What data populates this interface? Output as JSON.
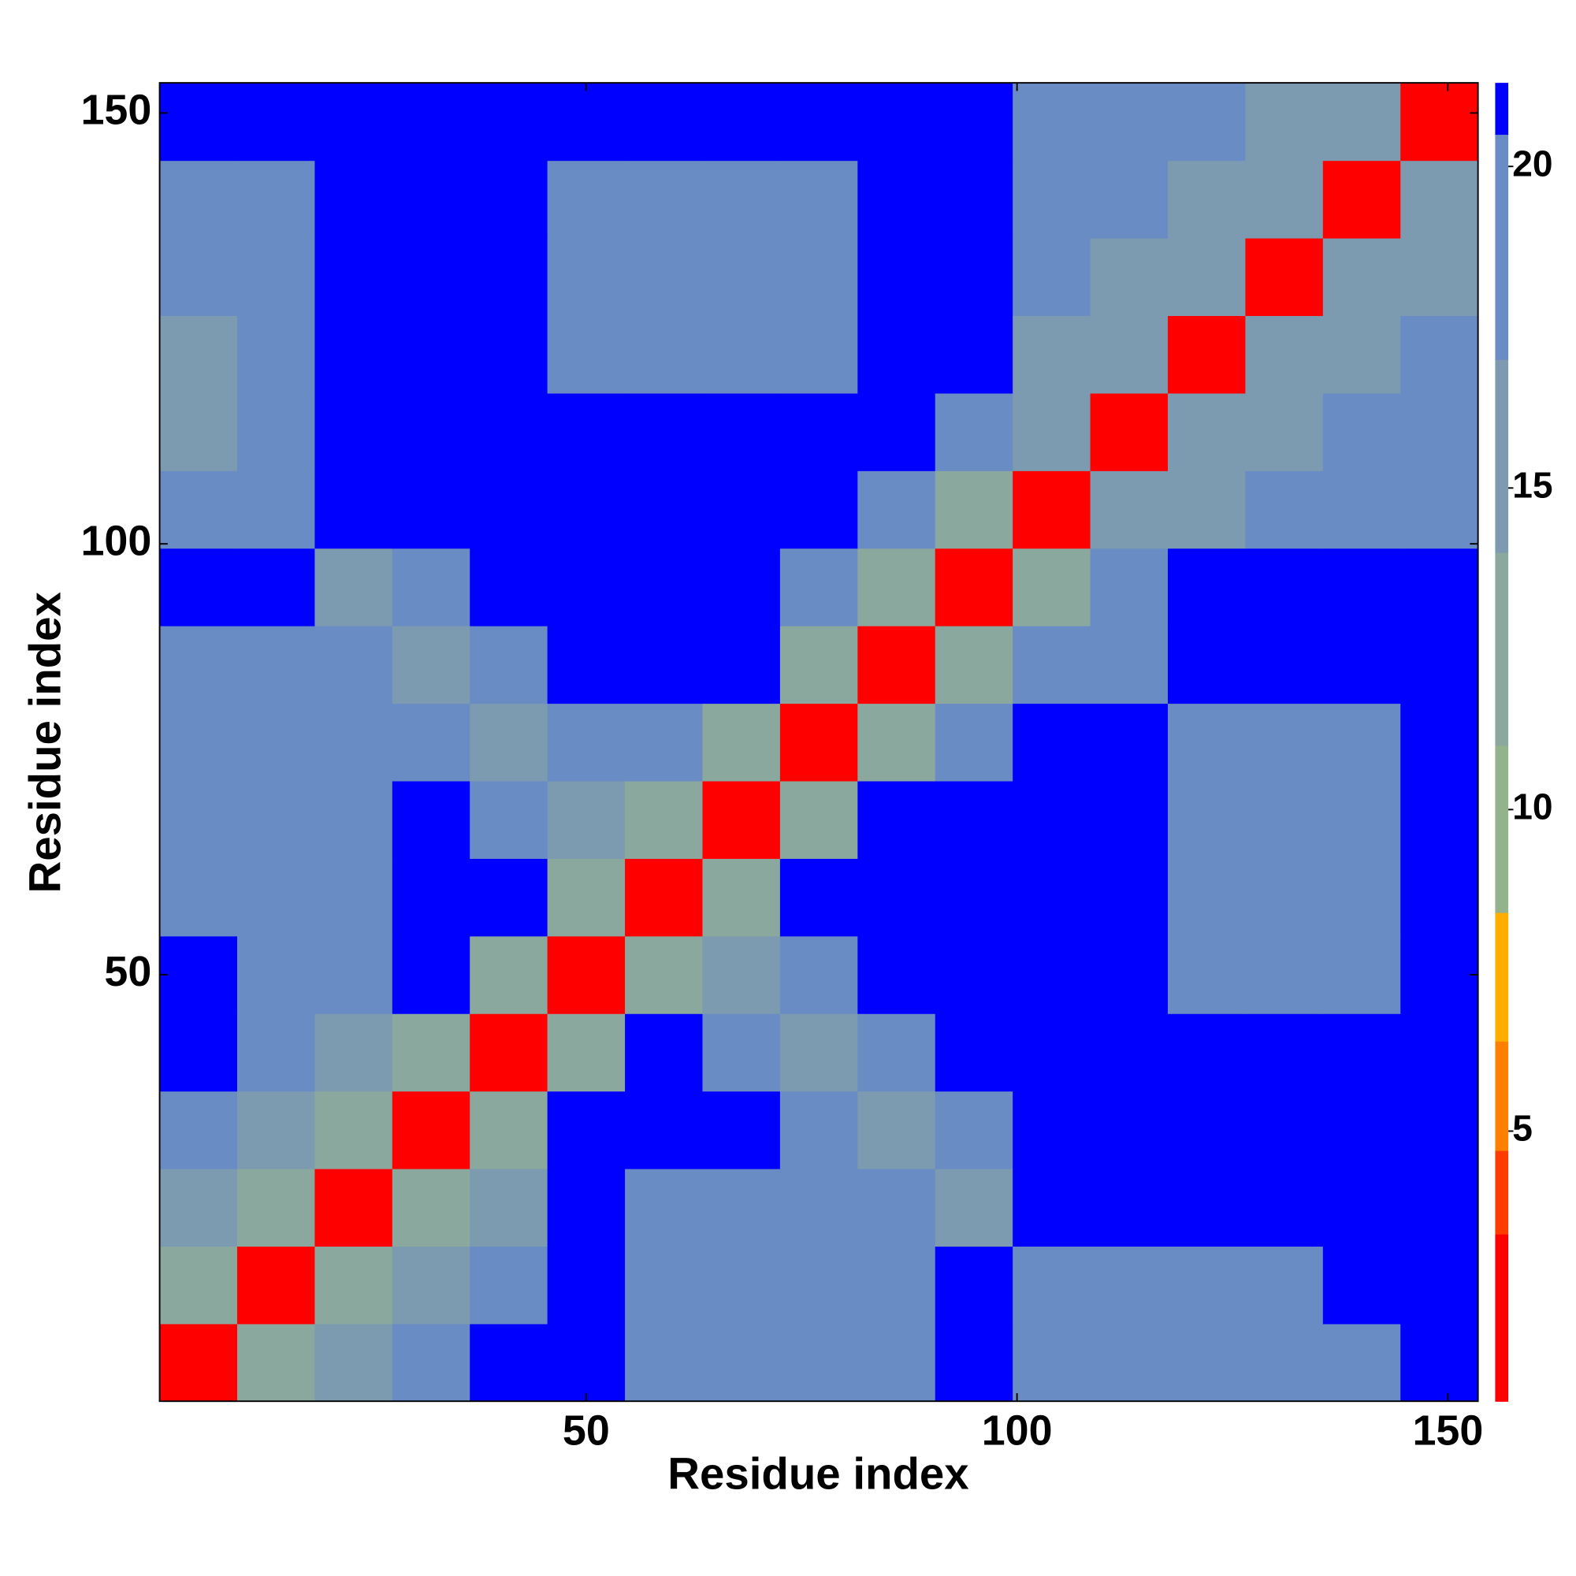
{
  "chart_data": {
    "type": "heatmap",
    "xlabel": "Residue index",
    "ylabel": "Residue index",
    "x_bins": [
      0.5,
      9.5,
      18.5,
      27.5,
      36.5,
      45.5,
      54.5,
      63.5,
      72.5,
      81.5,
      90.5,
      99.5,
      108.5,
      117.5,
      126.5,
      135.5,
      144.5,
      153.5
    ],
    "y_bins": [
      0.5,
      9.5,
      18.5,
      27.5,
      36.5,
      45.5,
      54.5,
      63.5,
      72.5,
      81.5,
      90.5,
      99.5,
      108.5,
      117.5,
      126.5,
      135.5,
      144.5,
      153.5
    ],
    "xlim": [
      0.5,
      153.5
    ],
    "ylim": [
      0.5,
      153.5
    ],
    "xticks": [
      50,
      100,
      150
    ],
    "yticks": [
      50,
      100,
      150
    ],
    "z": [
      [
        3,
        12,
        16,
        18,
        21,
        21,
        19,
        19,
        19,
        19,
        21,
        19,
        17,
        17,
        19,
        19,
        21
      ],
      [
        12,
        3,
        12,
        16,
        18,
        21,
        19,
        19,
        19,
        19,
        21,
        19,
        17,
        17,
        19,
        21,
        21
      ],
      [
        16,
        12,
        3,
        12,
        16,
        21,
        19,
        19,
        19,
        17,
        16,
        21,
        21,
        21,
        21,
        21,
        21
      ],
      [
        18,
        16,
        12,
        3,
        12,
        21,
        21,
        21,
        17,
        16,
        17,
        21,
        21,
        21,
        21,
        21,
        21
      ],
      [
        21,
        18,
        16,
        12,
        3,
        13,
        21,
        17,
        16,
        17,
        21,
        21,
        21,
        21,
        21,
        21,
        21
      ],
      [
        21,
        19,
        19,
        21,
        13,
        3,
        12,
        16,
        17,
        21,
        21,
        21,
        21,
        20,
        20,
        20,
        21
      ],
      [
        19,
        19,
        19,
        21,
        21,
        12,
        3,
        12,
        21,
        21,
        21,
        21,
        21,
        20,
        20,
        20,
        21
      ],
      [
        19,
        19,
        19,
        21,
        17,
        16,
        12,
        3,
        13,
        21,
        21,
        21,
        21,
        20,
        20,
        20,
        21
      ],
      [
        19,
        19,
        19,
        17,
        16,
        17,
        17,
        13,
        3,
        13,
        18,
        21,
        21,
        20,
        20,
        20,
        21
      ],
      [
        19,
        19,
        17,
        16,
        17,
        21,
        21,
        21,
        13,
        3,
        13,
        18,
        20,
        21,
        21,
        21,
        21
      ],
      [
        21,
        21,
        16,
        17,
        21,
        21,
        21,
        21,
        18,
        13,
        3,
        13,
        18,
        21,
        21,
        21,
        21
      ],
      [
        19,
        19,
        21,
        21,
        21,
        21,
        21,
        21,
        21,
        18,
        13,
        3,
        14,
        16,
        17,
        17,
        17
      ],
      [
        16,
        17,
        21,
        21,
        21,
        21,
        21,
        21,
        21,
        21,
        18,
        14,
        3,
        14,
        16,
        17,
        17
      ],
      [
        16,
        17,
        21,
        21,
        21,
        20,
        20,
        20,
        20,
        21,
        21,
        16,
        14,
        3,
        14,
        16,
        17
      ],
      [
        19,
        19,
        21,
        21,
        21,
        20,
        20,
        20,
        20,
        21,
        21,
        17,
        16,
        14,
        3,
        14,
        16
      ],
      [
        19,
        19,
        21,
        21,
        21,
        20,
        20,
        20,
        20,
        21,
        21,
        17,
        17,
        16,
        14,
        3,
        14
      ],
      [
        21,
        21,
        21,
        21,
        21,
        21,
        21,
        21,
        21,
        21,
        21,
        17,
        17,
        17,
        16,
        14,
        3
      ]
    ],
    "zticks": [
      5,
      10,
      15,
      20
    ],
    "colorbar": {
      "levels": [
        0.8,
        3.4,
        4.7,
        6.4,
        8.4,
        11,
        14,
        17,
        20.5,
        21.3
      ],
      "colors": [
        "#ff0000",
        "#ff3c00",
        "#ff8000",
        "#ffae00",
        "#93b38c",
        "#8ba89e",
        "#7c9ab0",
        "#6a8cc4",
        "#0000ff"
      ]
    }
  }
}
